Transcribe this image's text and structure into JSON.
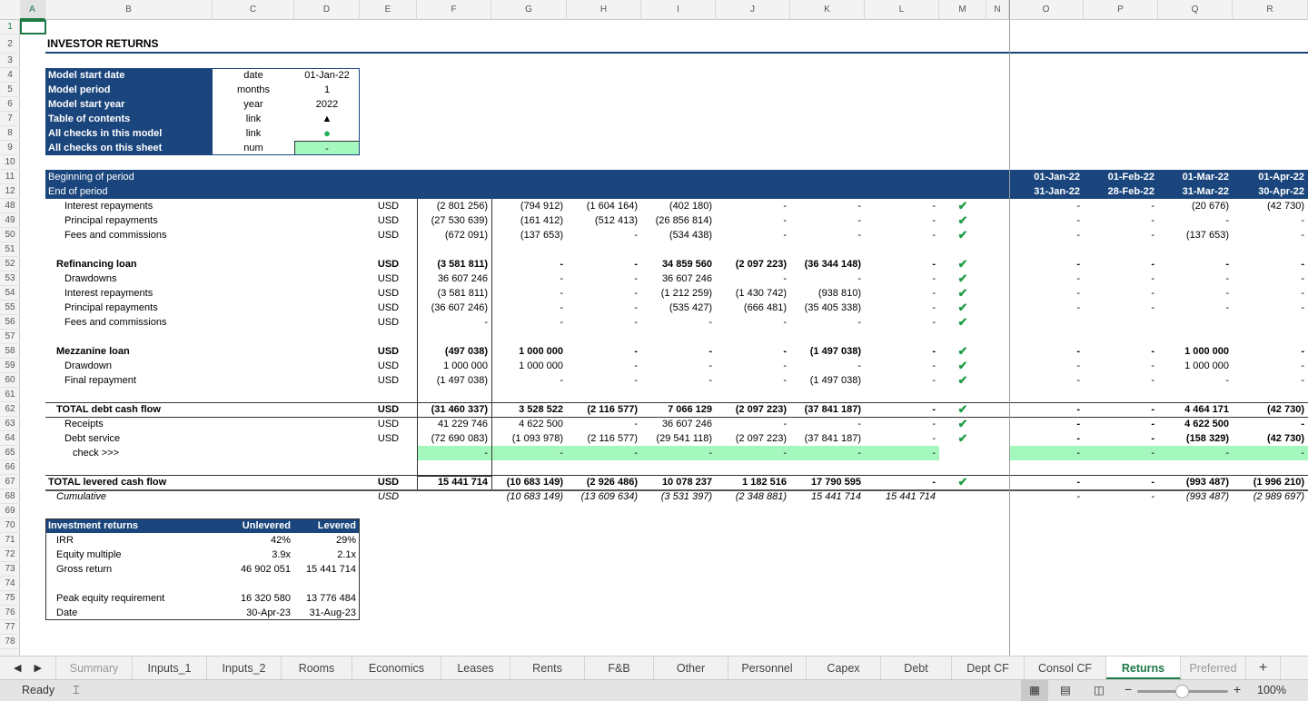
{
  "columns": [
    "A",
    "B",
    "C",
    "D",
    "E",
    "F",
    "G",
    "H",
    "I",
    "J",
    "K",
    "L",
    "M",
    "N",
    "O",
    "P",
    "Q",
    "R"
  ],
  "title": "INVESTOR RETURNS",
  "info_table": [
    {
      "label": "Model start date",
      "unit": "date",
      "value": "01-Jan-22"
    },
    {
      "label": "Model period",
      "unit": "months",
      "value": "1"
    },
    {
      "label": "Model start year",
      "unit": "year",
      "value": "2022"
    },
    {
      "label": "Table of contents",
      "unit": "link",
      "value": "▲"
    },
    {
      "label": "All checks in this model",
      "unit": "link",
      "value": "●"
    },
    {
      "label": "All checks on this sheet",
      "unit": "num",
      "value": "-"
    }
  ],
  "period_header": {
    "begin_label": "Beginning of period",
    "end_label": "End of period",
    "begin_dates": [
      "01-Jan-22",
      "01-Feb-22",
      "01-Mar-22",
      "01-Apr-22"
    ],
    "end_dates": [
      "31-Jan-22",
      "28-Feb-22",
      "31-Mar-22",
      "30-Apr-22"
    ]
  },
  "check_mark": "✔",
  "colors": {
    "navy": "#1b467d",
    "check_green": "#a5f8bd",
    "accent": "#1d7a45"
  },
  "rows": [
    {
      "n": "48",
      "label": "Interest repayments",
      "indent": 2,
      "unit": "USD",
      "v": [
        "(2 801 256)",
        "(794 912)",
        "(1 604 164)",
        "(402 180)",
        "-",
        "-",
        "-"
      ],
      "check": true,
      "p": [
        "-",
        "-",
        "(20 676)",
        "(42 730)"
      ]
    },
    {
      "n": "49",
      "label": "Principal repayments",
      "indent": 2,
      "unit": "USD",
      "v": [
        "(27 530 639)",
        "(161 412)",
        "(512 413)",
        "(26 856 814)",
        "-",
        "-",
        "-"
      ],
      "check": true,
      "p": [
        "-",
        "-",
        "-",
        "-"
      ]
    },
    {
      "n": "50",
      "label": "Fees and commissions",
      "indent": 2,
      "unit": "USD",
      "v": [
        "(672 091)",
        "(137 653)",
        "-",
        "(534 438)",
        "-",
        "-",
        "-"
      ],
      "check": true,
      "p": [
        "-",
        "-",
        "(137 653)",
        "-"
      ]
    },
    {
      "n": "51"
    },
    {
      "n": "52",
      "label": "Refinancing loan",
      "indent": 1,
      "bold": true,
      "unit": "USD",
      "v": [
        "(3 581 811)",
        "-",
        "-",
        "34 859 560",
        "(2 097 223)",
        "(36 344 148)",
        "-"
      ],
      "check": true,
      "p": [
        "-",
        "-",
        "-",
        "-"
      ]
    },
    {
      "n": "53",
      "label": "Drawdowns",
      "indent": 2,
      "unit": "USD",
      "v": [
        "36 607 246",
        "-",
        "-",
        "36 607 246",
        "-",
        "-",
        "-"
      ],
      "check": true,
      "p": [
        "-",
        "-",
        "-",
        "-"
      ]
    },
    {
      "n": "54",
      "label": "Interest repayments",
      "indent": 2,
      "unit": "USD",
      "v": [
        "(3 581 811)",
        "-",
        "-",
        "(1 212 259)",
        "(1 430 742)",
        "(938 810)",
        "-"
      ],
      "check": true,
      "p": [
        "-",
        "-",
        "-",
        "-"
      ]
    },
    {
      "n": "55",
      "label": "Principal repayments",
      "indent": 2,
      "unit": "USD",
      "v": [
        "(36 607 246)",
        "-",
        "-",
        "(535 427)",
        "(666 481)",
        "(35 405 338)",
        "-"
      ],
      "check": true,
      "p": [
        "-",
        "-",
        "-",
        "-"
      ]
    },
    {
      "n": "56",
      "label": "Fees and commissions",
      "indent": 2,
      "unit": "USD",
      "v": [
        "-",
        "-",
        "-",
        "-",
        "-",
        "-",
        "-"
      ],
      "check": true,
      "p": [
        "",
        "",
        "",
        ""
      ]
    },
    {
      "n": "57"
    },
    {
      "n": "58",
      "label": "Mezzanine loan",
      "indent": 1,
      "bold": true,
      "unit": "USD",
      "v": [
        "(497 038)",
        "1 000 000",
        "-",
        "-",
        "-",
        "(1 497 038)",
        "-"
      ],
      "check": true,
      "p": [
        "-",
        "-",
        "1 000 000",
        "-"
      ]
    },
    {
      "n": "59",
      "label": "Drawdown",
      "indent": 2,
      "unit": "USD",
      "v": [
        "1 000 000",
        "1 000 000",
        "-",
        "-",
        "-",
        "-",
        "-"
      ],
      "check": true,
      "p": [
        "-",
        "-",
        "1 000 000",
        "-"
      ]
    },
    {
      "n": "60",
      "label": "Final repayment",
      "indent": 2,
      "unit": "USD",
      "v": [
        "(1 497 038)",
        "-",
        "-",
        "-",
        "-",
        "(1 497 038)",
        "-"
      ],
      "check": true,
      "p": [
        "-",
        "-",
        "-",
        "-"
      ]
    },
    {
      "n": "61"
    },
    {
      "n": "62",
      "label": "TOTAL debt cash flow",
      "indent": 1,
      "bold": true,
      "topline": true,
      "unit": "USD",
      "v": [
        "(31 460 337)",
        "3 528 522",
        "(2 116 577)",
        "7 066 129",
        "(2 097 223)",
        "(37 841 187)",
        "-"
      ],
      "check": true,
      "p": [
        "-",
        "-",
        "4 464 171",
        "(42 730)"
      ]
    },
    {
      "n": "63",
      "label": "Receipts",
      "indent": 2,
      "topline": true,
      "unit": "USD",
      "v": [
        "41 229 746",
        "4 622 500",
        "-",
        "36 607 246",
        "-",
        "-",
        "-"
      ],
      "check": true,
      "p": [
        "-",
        "-",
        "4 622 500",
        "-"
      ],
      "pbold": true
    },
    {
      "n": "64",
      "label": "Debt service",
      "indent": 2,
      "unit": "USD",
      "v": [
        "(72 690 083)",
        "(1 093 978)",
        "(2 116 577)",
        "(29 541 118)",
        "(2 097 223)",
        "(37 841 187)",
        "-"
      ],
      "check": true,
      "p": [
        "-",
        "-",
        "(158 329)",
        "(42 730)"
      ],
      "pbold": true
    },
    {
      "n": "65",
      "label": "check >>>",
      "indent": 3,
      "green": true,
      "unit": "",
      "v": [
        "-",
        "-",
        "-",
        "-",
        "-",
        "-",
        "-"
      ],
      "check": false,
      "p": [
        "-",
        "-",
        "-",
        "-"
      ]
    },
    {
      "n": "66"
    },
    {
      "n": "67",
      "label": "TOTAL levered cash flow",
      "indent": 0,
      "bold": true,
      "topline": true,
      "bottomline": true,
      "unit": "USD",
      "v": [
        "15 441 714",
        "(10 683 149)",
        "(2 926 486)",
        "10 078 237",
        "1 182 516",
        "17 790 595",
        "-"
      ],
      "check": true,
      "p": [
        "-",
        "-",
        "(993 487)",
        "(1 996 210)"
      ]
    },
    {
      "n": "68",
      "label": "Cumulative",
      "indent": 1,
      "italic": true,
      "unit": "USD",
      "v": [
        "",
        "(10 683 149)",
        "(13 609 634)",
        "(3 531 397)",
        "(2 348 881)",
        "15 441 714",
        "15 441 714"
      ],
      "check": false,
      "p": [
        "-",
        "-",
        "(993 487)",
        "(2 989 697)"
      ]
    },
    {
      "n": "69"
    },
    {
      "n": "70"
    },
    {
      "n": "71"
    },
    {
      "n": "72"
    },
    {
      "n": "73"
    },
    {
      "n": "74"
    },
    {
      "n": "75"
    },
    {
      "n": "76"
    },
    {
      "n": "77"
    },
    {
      "n": "78"
    }
  ],
  "returns_table": {
    "header": "Investment returns",
    "col1": "Unlevered",
    "col2": "Levered",
    "rows": [
      {
        "label": "IRR",
        "u": "42%",
        "l": "29%"
      },
      {
        "label": "Equity multiple",
        "u": "3.9x",
        "l": "2.1x"
      },
      {
        "label": "Gross return",
        "u": "46 902 051",
        "l": "15 441 714"
      },
      {
        "label": "",
        "u": "",
        "l": ""
      },
      {
        "label": "Peak equity requirement",
        "u": "16 320 580",
        "l": "13 776 484"
      },
      {
        "label": "Date",
        "u": "30-Apr-23",
        "l": "31-Aug-23"
      }
    ]
  },
  "sheet_tabs": [
    "Summary",
    "Inputs_1",
    "Inputs_2",
    "Rooms",
    "Economics",
    "Leases",
    "Rents",
    "F&B",
    "Other",
    "Personnel",
    "Capex",
    "Debt",
    "Dept CF",
    "Consol CF",
    "Returns",
    "Preferred"
  ],
  "active_tab": "Returns",
  "status": {
    "text": "Ready",
    "zoom": "100%",
    "zoom_level": 100
  }
}
